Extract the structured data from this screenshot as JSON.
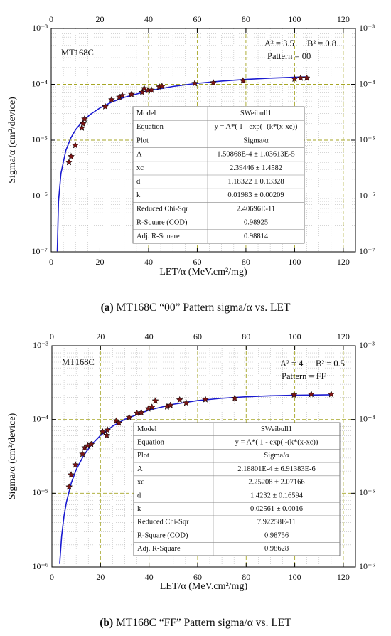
{
  "chart_data": [
    {
      "type": "scatter",
      "annotations": [
        "MT168C",
        "A² = 3.5",
        "B² = 0.8",
        "Pattern = 00"
      ],
      "x_label": "LET/α (MeV.cm²/mg)",
      "y_label": "Sigma/α (cm²/device)",
      "caption_label": "(a)",
      "caption": " MT168C “00” Pattern sigma/α vs. LET",
      "xlim": [
        0,
        125
      ],
      "xticks": [
        0,
        20,
        40,
        60,
        80,
        100,
        120
      ],
      "ylim": [
        1e-07,
        0.001
      ],
      "log_y": true,
      "yticks": [
        {
          "value": 0.001,
          "label": "10⁻³"
        },
        {
          "value": 0.0001,
          "label": "10⁻⁴"
        },
        {
          "value": 1e-05,
          "label": "10⁻⁵"
        },
        {
          "value": 1e-06,
          "label": "10⁻⁶"
        },
        {
          "value": 1e-07,
          "label": "10⁻⁷"
        }
      ],
      "grid": true,
      "minor_grid": true,
      "color": "#7a1515",
      "x": [
        7.3,
        8.2,
        9.9,
        12.6,
        13.1,
        13.7,
        22.2,
        24.8,
        28,
        29.2,
        33,
        37.4,
        38.2,
        39.7,
        41.2,
        44.4,
        45.5,
        59,
        66.6,
        78.8,
        100,
        102.5,
        105
      ],
      "values": [
        4e-06,
        5.1e-06,
        8.1e-06,
        1.66e-05,
        1.97e-05,
        2.4e-05,
        4e-05,
        5.3e-05,
        5.9e-05,
        6.3e-05,
        6.6e-05,
        7.2e-05,
        8.4e-05,
        7.7e-05,
        7.9e-05,
        9e-05,
        9.2e-05,
        0.000104,
        0.000107,
        0.000116,
        0.000125,
        0.00013,
        0.00013
      ],
      "fit": {
        "color": "#1a1ad0",
        "x": [
          2.5,
          3,
          4,
          6,
          8,
          10,
          13,
          16,
          20,
          25,
          30,
          40,
          50,
          60,
          70,
          80,
          90,
          100,
          105
        ],
        "values": [
          1.02e-07,
          8.04e-07,
          2.53e-06,
          6.51e-06,
          1.08e-05,
          1.53e-05,
          2.2e-05,
          2.88e-05,
          3.77e-05,
          4.84e-05,
          5.84e-05,
          7.65e-05,
          9.16e-05,
          0.0001041,
          0.0001142,
          0.0001224,
          0.0001288,
          0.0001338,
          0.000136
        ]
      },
      "stats_table": {
        "rows": [
          [
            "Model",
            "SWeibull1"
          ],
          [
            "Equation",
            "y = A*( 1 - exp( -(k*(x-xc))"
          ],
          [
            "Plot",
            "Sigma/α"
          ],
          [
            "A",
            "1.50868E-4 ± 1.03613E-5"
          ],
          [
            "xc",
            "2.39446 ± 1.4582"
          ],
          [
            "d",
            "1.18322 ± 0.13328"
          ],
          [
            "k",
            "0.01983 ± 0.00209"
          ],
          [
            "Reduced Chi-Sqr",
            "2.40696E-11"
          ],
          [
            "R-Square (COD)",
            "0.98925"
          ],
          [
            "Adj. R-Square",
            "0.98814"
          ]
        ]
      }
    },
    {
      "type": "scatter",
      "annotations": [
        "MT168C",
        "A² = 4",
        "B² = 0.5",
        "Pattern = FF"
      ],
      "x_label": "LET/α (MeV.cm²/mg)",
      "y_label": "Sigma/α (cm²/device)",
      "caption_label": "(b)",
      "caption": " MT168C “FF” Pattern sigma/α vs. LET",
      "xlim": [
        0,
        125
      ],
      "xticks": [
        0,
        20,
        40,
        60,
        80,
        100,
        120
      ],
      "ylim": [
        1e-06,
        0.001
      ],
      "log_y": true,
      "yticks": [
        {
          "value": 0.001,
          "label": "10⁻³"
        },
        {
          "value": 0.0001,
          "label": "10⁻⁴"
        },
        {
          "value": 1e-05,
          "label": "10⁻⁵"
        },
        {
          "value": 1e-06,
          "label": "10⁻⁶"
        }
      ],
      "grid": true,
      "minor_grid": true,
      "color": "#7a1515",
      "x": [
        7.1,
        7.9,
        9.7,
        12.6,
        13.5,
        14.7,
        16.2,
        20.9,
        22.6,
        22.9,
        26.5,
        27.6,
        31.8,
        35,
        36.8,
        39.7,
        41.2,
        42.6,
        47.4,
        48.8,
        52.6,
        55.3,
        63.2,
        75.3,
        99.7,
        106.8,
        115
      ],
      "values": [
        1.22e-05,
        1.78e-05,
        2.43e-05,
        3.4e-05,
        4.14e-05,
        4.4e-05,
        4.6e-05,
        6.8e-05,
        6.1e-05,
        7.2e-05,
        9.6e-05,
        9e-05,
        0.000107,
        0.000122,
        0.000124,
        0.00014,
        0.000147,
        0.000179,
        0.000149,
        0.000156,
        0.000185,
        0.000168,
        0.000187,
        0.000194,
        0.000216,
        0.00022,
        0.00022
      ],
      "fit": {
        "color": "#1a1ad0",
        "x": [
          3.2,
          4,
          5,
          6,
          8,
          10,
          13,
          16,
          20,
          25,
          30,
          40,
          50,
          60,
          70,
          80,
          90,
          100,
          115
        ],
        "values": [
          1.1e-06,
          2.62e-06,
          4.95e-06,
          7.65e-06,
          1.385e-05,
          2.09e-05,
          3.22e-05,
          4.43e-05,
          6.08e-05,
          8.12e-05,
          0.0001005,
          0.0001344,
          0.000161,
          0.0001806,
          0.0001943,
          0.0002036,
          0.0002096,
          0.0002133,
          0.0002164
        ]
      },
      "stats_table": {
        "rows": [
          [
            "Model",
            "SWeibull1"
          ],
          [
            "Equation",
            "y = A*( 1 - exp( -(k*(x-xc))"
          ],
          [
            "Plot",
            "Sigma/α"
          ],
          [
            "A",
            "2.18801E-4 ± 6.91383E-6"
          ],
          [
            "xc",
            "2.25208 ± 2.07166"
          ],
          [
            "d",
            "1.4232 ± 0.16594"
          ],
          [
            "k",
            "0.02561 ± 0.0016"
          ],
          [
            "Reduced Chi-Sqr",
            "7.92258E-11"
          ],
          [
            "R-Square (COD)",
            "0.98756"
          ],
          [
            "Adj. R-Square",
            "0.98628"
          ]
        ]
      }
    }
  ]
}
